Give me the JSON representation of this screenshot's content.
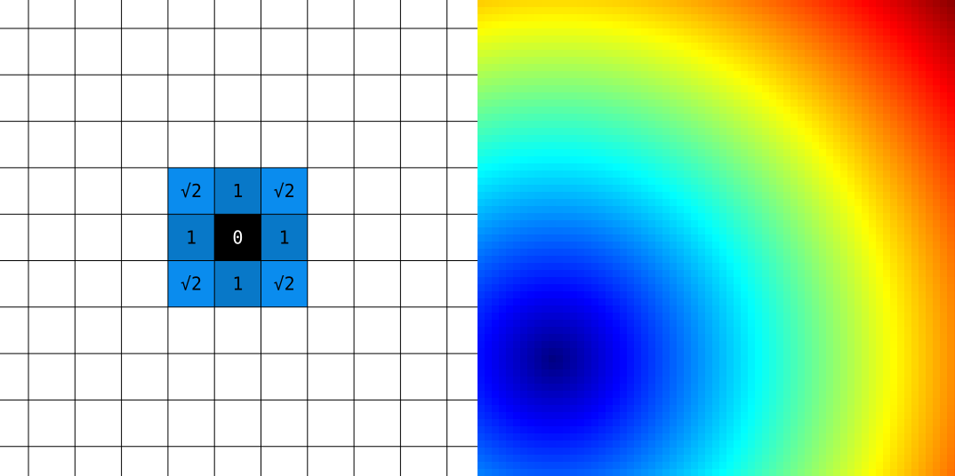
{
  "grid": {
    "cells": [
      [
        "√2",
        "1",
        "√2"
      ],
      [
        "1",
        "0",
        "1"
      ],
      [
        "√2",
        "1",
        "√2"
      ]
    ]
  }
}
